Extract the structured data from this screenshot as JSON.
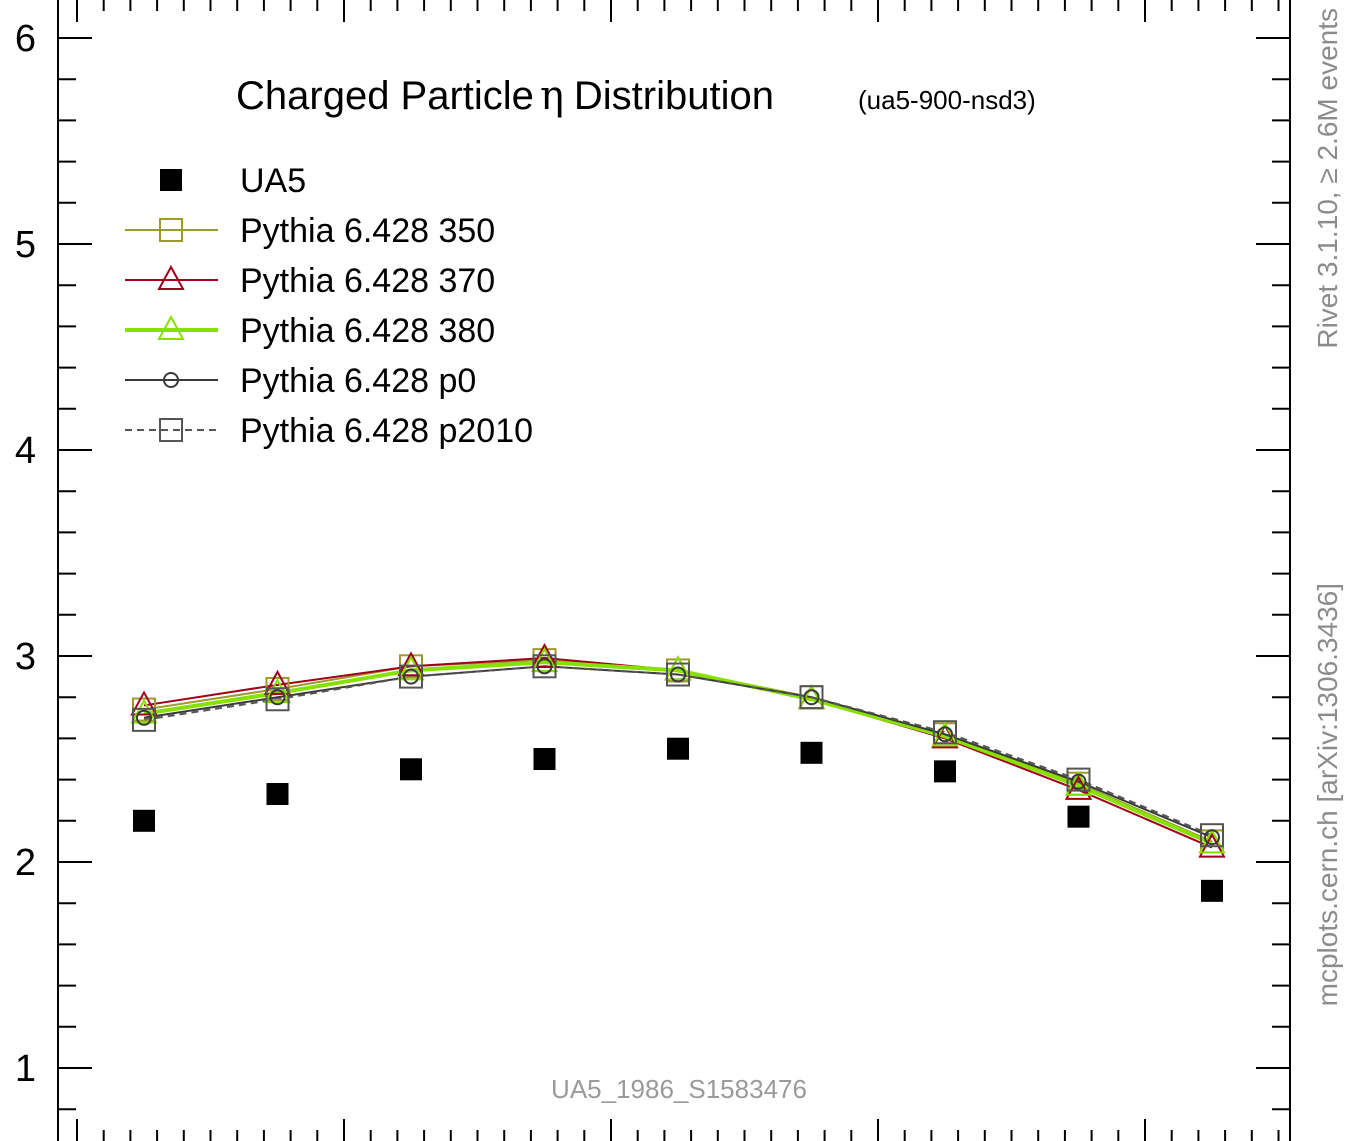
{
  "chart_data": {
    "type": "line",
    "title": "Charged Particle",
    "title_symbol": "η",
    "title_suffix": "Distribution",
    "subtitle": "(ua5-900-nsd3)",
    "watermark": "UA5_1986_S1583476",
    "side_label_top": "Rivet 3.1.10, ≥ 2.6M events",
    "side_label_bottom": "mcplots.cern.ch [arXiv:1306.3436]",
    "xlabel": "",
    "ylabel": "",
    "xlim": [
      0,
      4
    ],
    "ylim": [
      0.75,
      6.1
    ],
    "ytick_labels": [
      "1",
      "2",
      "3",
      "4",
      "5",
      "6"
    ],
    "yticks": [
      1,
      2,
      3,
      4,
      5,
      6
    ],
    "grid": false,
    "legend_position": "top-left",
    "x": [
      0.25,
      0.75,
      1.25,
      1.75,
      2.25,
      2.75,
      3.25,
      3.75,
      4.25
    ],
    "series": [
      {
        "name": "UA5",
        "style": "data",
        "marker": "filled-square",
        "color": "#000000",
        "values": [
          2.2,
          2.33,
          2.45,
          2.5,
          2.55,
          2.53,
          2.44,
          2.22,
          1.86
        ]
      },
      {
        "name": "Pythia 6.428 350",
        "style": "solid",
        "marker": "open-square",
        "color": "#9c9a2c",
        "values": [
          2.74,
          2.84,
          2.95,
          2.98,
          2.93,
          2.8,
          2.62,
          2.38,
          2.1
        ]
      },
      {
        "name": "Pythia 6.428 370",
        "style": "solid",
        "marker": "open-triangle",
        "color": "#a0001a",
        "values": [
          2.76,
          2.86,
          2.95,
          2.99,
          2.93,
          2.79,
          2.6,
          2.35,
          2.07
        ]
      },
      {
        "name": "Pythia 6.428 380",
        "style": "solid-thick",
        "marker": "open-triangle",
        "color": "#86e000",
        "values": [
          2.72,
          2.82,
          2.93,
          2.97,
          2.93,
          2.79,
          2.61,
          2.37,
          2.09
        ]
      },
      {
        "name": "Pythia 6.428 p0",
        "style": "solid",
        "marker": "open-circle",
        "color": "#3a3a3a",
        "values": [
          2.7,
          2.8,
          2.9,
          2.95,
          2.91,
          2.8,
          2.62,
          2.39,
          2.12
        ]
      },
      {
        "name": "Pythia 6.428 p2010",
        "style": "dashed",
        "marker": "open-square",
        "color": "#555555",
        "values": [
          2.69,
          2.79,
          2.9,
          2.95,
          2.91,
          2.8,
          2.63,
          2.4,
          2.13
        ]
      }
    ]
  }
}
